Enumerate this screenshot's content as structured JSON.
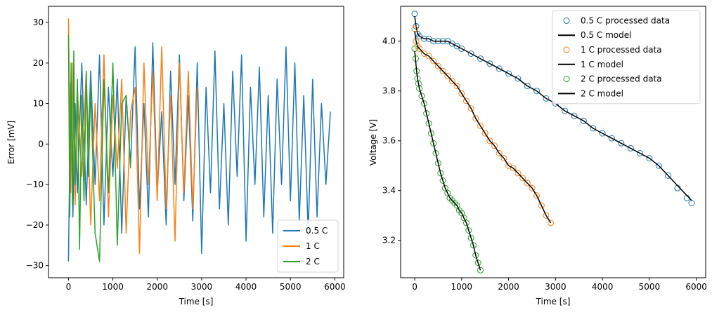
{
  "chart_data": [
    {
      "type": "line",
      "title": "",
      "xlabel": "Time [s]",
      "ylabel": "Error [mV]",
      "xlim": [
        -450,
        6200
      ],
      "ylim": [
        -33,
        34
      ],
      "xticks": [
        0,
        1000,
        2000,
        3000,
        4000,
        5000,
        6000
      ],
      "xtick_labels": [
        "0",
        "1000",
        "2000",
        "3000",
        "4000",
        "5000",
        "6000"
      ],
      "yticks": [
        -30,
        -20,
        -10,
        0,
        10,
        20,
        30
      ],
      "ytick_labels": [
        "−30",
        "−20",
        "−10",
        "0",
        "10",
        "20",
        "30"
      ],
      "legend": "lower-right",
      "grid": false,
      "series": [
        {
          "name": "0.5 C",
          "color": "#1f77b4",
          "x": [
            0,
            50,
            100,
            150,
            200,
            300,
            400,
            500,
            600,
            700,
            800,
            900,
            1000,
            1100,
            1200,
            1300,
            1400,
            1500,
            1600,
            1700,
            1800,
            1900,
            2000,
            2100,
            2200,
            2300,
            2400,
            2500,
            2600,
            2700,
            2800,
            2900,
            3000,
            3100,
            3200,
            3300,
            3400,
            3500,
            3600,
            3700,
            3800,
            3900,
            4000,
            4100,
            4200,
            4300,
            4400,
            4500,
            4600,
            4700,
            4800,
            4900,
            5000,
            5100,
            5200,
            5300,
            5400,
            5500,
            5600,
            5700,
            5800,
            5900
          ],
          "y": [
            -29,
            15,
            -18,
            10,
            -12,
            20,
            -15,
            18,
            -10,
            22,
            -20,
            14,
            -8,
            16,
            -22,
            12,
            -5,
            24,
            -16,
            10,
            -18,
            25,
            -12,
            8,
            -20,
            18,
            -10,
            22,
            -14,
            12,
            -19,
            20,
            -27,
            14,
            -12,
            23,
            -16,
            10,
            -20,
            18,
            -8,
            22,
            -24,
            14,
            -10,
            19,
            -18,
            12,
            -22,
            16,
            -10,
            24,
            -14,
            20,
            -19,
            12,
            -22,
            16,
            -18,
            10,
            -10,
            8
          ]
        },
        {
          "name": "1 C",
          "color": "#ff7f0e",
          "x": [
            0,
            50,
            100,
            150,
            200,
            300,
            400,
            500,
            600,
            700,
            800,
            900,
            1000,
            1100,
            1200,
            1300,
            1400,
            1500,
            1600,
            1700,
            1800,
            1900,
            2000,
            2100,
            2200,
            2300,
            2400,
            2500,
            2600,
            2700,
            2800,
            2900
          ],
          "y": [
            31,
            -12,
            20,
            -15,
            14,
            -8,
            18,
            -20,
            10,
            -14,
            22,
            -18,
            12,
            -6,
            16,
            -22,
            8,
            14,
            -27,
            20,
            -10,
            18,
            -14,
            24,
            -16,
            12,
            -24,
            20,
            -12,
            18,
            -16,
            14
          ]
        },
        {
          "name": "2 C",
          "color": "#2ca02c",
          "x": [
            0,
            30,
            60,
            90,
            120,
            150,
            200,
            250,
            300,
            350,
            400,
            450,
            500,
            600,
            700,
            800,
            900,
            1000,
            1100,
            1200,
            1300,
            1400
          ],
          "y": [
            27,
            -18,
            20,
            -15,
            23,
            -10,
            16,
            -26,
            12,
            -14,
            18,
            -8,
            14,
            -22,
            -29,
            16,
            -12,
            20,
            -25,
            10,
            12,
            -6
          ]
        }
      ]
    },
    {
      "type": "scatter",
      "title": "",
      "xlabel": "Time [s]",
      "ylabel": "Voltage [V]",
      "xlim": [
        -300,
        6200
      ],
      "ylim": [
        3.05,
        4.14
      ],
      "xticks": [
        0,
        1000,
        2000,
        3000,
        4000,
        5000,
        6000
      ],
      "xtick_labels": [
        "0",
        "1000",
        "2000",
        "3000",
        "4000",
        "5000",
        "6000"
      ],
      "yticks": [
        3.2,
        3.4,
        3.6,
        3.8,
        4.0
      ],
      "ytick_labels": [
        "3.2",
        "3.4",
        "3.6",
        "3.8",
        "4.0"
      ],
      "legend": "top-right",
      "grid": false,
      "series": [
        {
          "name": "0.5 C processed data",
          "kind": "markers",
          "color": "#1f77b4",
          "x": [
            0,
            30,
            60,
            100,
            200,
            300,
            400,
            500,
            600,
            700,
            800,
            900,
            1000,
            1200,
            1400,
            1600,
            1800,
            2000,
            2200,
            2400,
            2600,
            2800,
            3000,
            3200,
            3400,
            3600,
            3800,
            4000,
            4200,
            4400,
            4600,
            4800,
            5000,
            5200,
            5400,
            5600,
            5800,
            5900
          ],
          "y": [
            4.11,
            4.06,
            4.03,
            4.02,
            4.01,
            4.01,
            4.0,
            4.0,
            4.0,
            4.0,
            3.99,
            3.98,
            3.97,
            3.95,
            3.93,
            3.91,
            3.89,
            3.87,
            3.85,
            3.82,
            3.8,
            3.77,
            3.75,
            3.72,
            3.7,
            3.68,
            3.65,
            3.63,
            3.61,
            3.59,
            3.57,
            3.55,
            3.53,
            3.5,
            3.46,
            3.41,
            3.37,
            3.35
          ]
        },
        {
          "name": "0.5 C model",
          "kind": "line",
          "color": "#000000",
          "x": [
            0,
            30,
            60,
            100,
            200,
            300,
            400,
            500,
            600,
            700,
            800,
            900,
            1000,
            1200,
            1400,
            1600,
            1800,
            2000,
            2200,
            2400,
            2600,
            2800,
            3000,
            3200,
            3400,
            3600,
            3800,
            4000,
            4200,
            4400,
            4600,
            4800,
            5000,
            5200,
            5400,
            5600,
            5800,
            5900
          ],
          "y": [
            4.1,
            4.06,
            4.03,
            4.02,
            4.01,
            4.01,
            4.0,
            4.0,
            4.0,
            4.0,
            3.99,
            3.98,
            3.97,
            3.95,
            3.93,
            3.91,
            3.89,
            3.87,
            3.85,
            3.82,
            3.8,
            3.77,
            3.75,
            3.72,
            3.7,
            3.68,
            3.65,
            3.63,
            3.61,
            3.59,
            3.57,
            3.55,
            3.53,
            3.5,
            3.46,
            3.42,
            3.38,
            3.36
          ]
        },
        {
          "name": "1 C processed data",
          "kind": "markers",
          "color": "#ff7f0e",
          "x": [
            0,
            30,
            60,
            100,
            200,
            300,
            400,
            500,
            600,
            700,
            800,
            900,
            1000,
            1100,
            1200,
            1300,
            1400,
            1500,
            1600,
            1700,
            1800,
            1900,
            2000,
            2100,
            2200,
            2300,
            2400,
            2500,
            2600,
            2700,
            2800,
            2900
          ],
          "y": [
            4.05,
            4.0,
            3.98,
            3.97,
            3.95,
            3.94,
            3.92,
            3.9,
            3.88,
            3.86,
            3.84,
            3.82,
            3.79,
            3.76,
            3.73,
            3.69,
            3.66,
            3.63,
            3.6,
            3.58,
            3.55,
            3.53,
            3.5,
            3.49,
            3.47,
            3.45,
            3.43,
            3.41,
            3.38,
            3.34,
            3.3,
            3.27
          ]
        },
        {
          "name": "1 C model",
          "kind": "line",
          "color": "#000000",
          "x": [
            0,
            30,
            60,
            100,
            200,
            300,
            400,
            500,
            600,
            700,
            800,
            900,
            1000,
            1100,
            1200,
            1300,
            1400,
            1500,
            1600,
            1700,
            1800,
            1900,
            2000,
            2100,
            2200,
            2300,
            2400,
            2500,
            2600,
            2700,
            2800,
            2900
          ],
          "y": [
            4.04,
            4.0,
            3.98,
            3.97,
            3.95,
            3.94,
            3.92,
            3.9,
            3.88,
            3.86,
            3.84,
            3.82,
            3.79,
            3.76,
            3.73,
            3.69,
            3.66,
            3.63,
            3.6,
            3.58,
            3.55,
            3.53,
            3.5,
            3.49,
            3.47,
            3.45,
            3.43,
            3.41,
            3.38,
            3.34,
            3.3,
            3.27
          ]
        },
        {
          "name": "2 C processed data",
          "kind": "markers",
          "color": "#2ca02c",
          "x": [
            0,
            20,
            40,
            60,
            80,
            100,
            150,
            200,
            250,
            300,
            350,
            400,
            450,
            500,
            550,
            600,
            650,
            700,
            750,
            800,
            850,
            900,
            950,
            1000,
            1050,
            1100,
            1150,
            1200,
            1250,
            1300,
            1350,
            1400
          ],
          "y": [
            3.97,
            3.93,
            3.88,
            3.85,
            3.83,
            3.81,
            3.78,
            3.75,
            3.71,
            3.67,
            3.63,
            3.59,
            3.55,
            3.51,
            3.47,
            3.44,
            3.41,
            3.39,
            3.37,
            3.36,
            3.35,
            3.34,
            3.32,
            3.31,
            3.29,
            3.27,
            3.24,
            3.21,
            3.18,
            3.14,
            3.11,
            3.08
          ]
        },
        {
          "name": "2 C model",
          "kind": "line",
          "color": "#000000",
          "x": [
            0,
            20,
            40,
            60,
            80,
            100,
            150,
            200,
            250,
            300,
            350,
            400,
            450,
            500,
            550,
            600,
            650,
            700,
            750,
            800,
            850,
            900,
            950,
            1000,
            1050,
            1100,
            1150,
            1200,
            1250,
            1300,
            1350,
            1400
          ],
          "y": [
            3.96,
            3.92,
            3.88,
            3.85,
            3.83,
            3.81,
            3.78,
            3.75,
            3.71,
            3.67,
            3.63,
            3.59,
            3.55,
            3.51,
            3.47,
            3.44,
            3.41,
            3.39,
            3.37,
            3.36,
            3.35,
            3.34,
            3.32,
            3.31,
            3.29,
            3.27,
            3.24,
            3.21,
            3.18,
            3.14,
            3.11,
            3.08
          ]
        }
      ]
    }
  ]
}
